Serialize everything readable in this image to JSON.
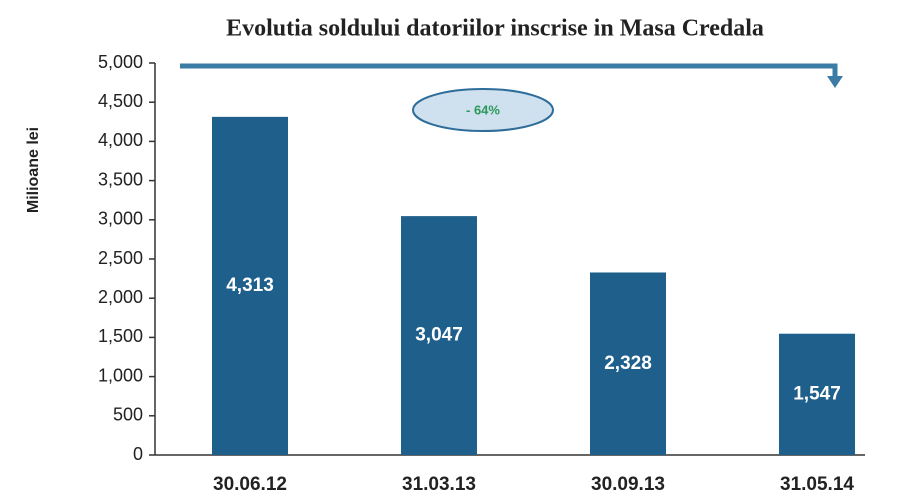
{
  "chart_data": {
    "type": "bar",
    "title": "Evolutia soldului datoriilor inscrise in Masa Credala",
    "y_label": "Milioane lei",
    "annotation": "- 64%",
    "categories": [
      "30.06.12",
      "31.03.13",
      "30.09.13",
      "31.05.14"
    ],
    "values": [
      4313,
      3047,
      2328,
      1547
    ],
    "value_labels": [
      "4,313",
      "3,047",
      "2,328",
      "1,547"
    ],
    "color": "#1f5f8b",
    "ylim": [
      0,
      5000
    ],
    "yticks": [
      0,
      500,
      {
        "value": 1000,
        "label": "1,000"
      },
      {
        "value": 1500,
        "label": "1,500"
      },
      {
        "value": 2000,
        "label": "2,000"
      },
      {
        "value": 2500,
        "label": "2,500"
      },
      {
        "value": 3000,
        "label": "3,000"
      },
      {
        "value": 3500,
        "label": "3,500"
      },
      {
        "value": 4000,
        "label": "4,000"
      },
      {
        "value": 4500,
        "label": "4,500"
      },
      {
        "value": 5000,
        "label": "5,000"
      }
    ],
    "grid": false
  }
}
